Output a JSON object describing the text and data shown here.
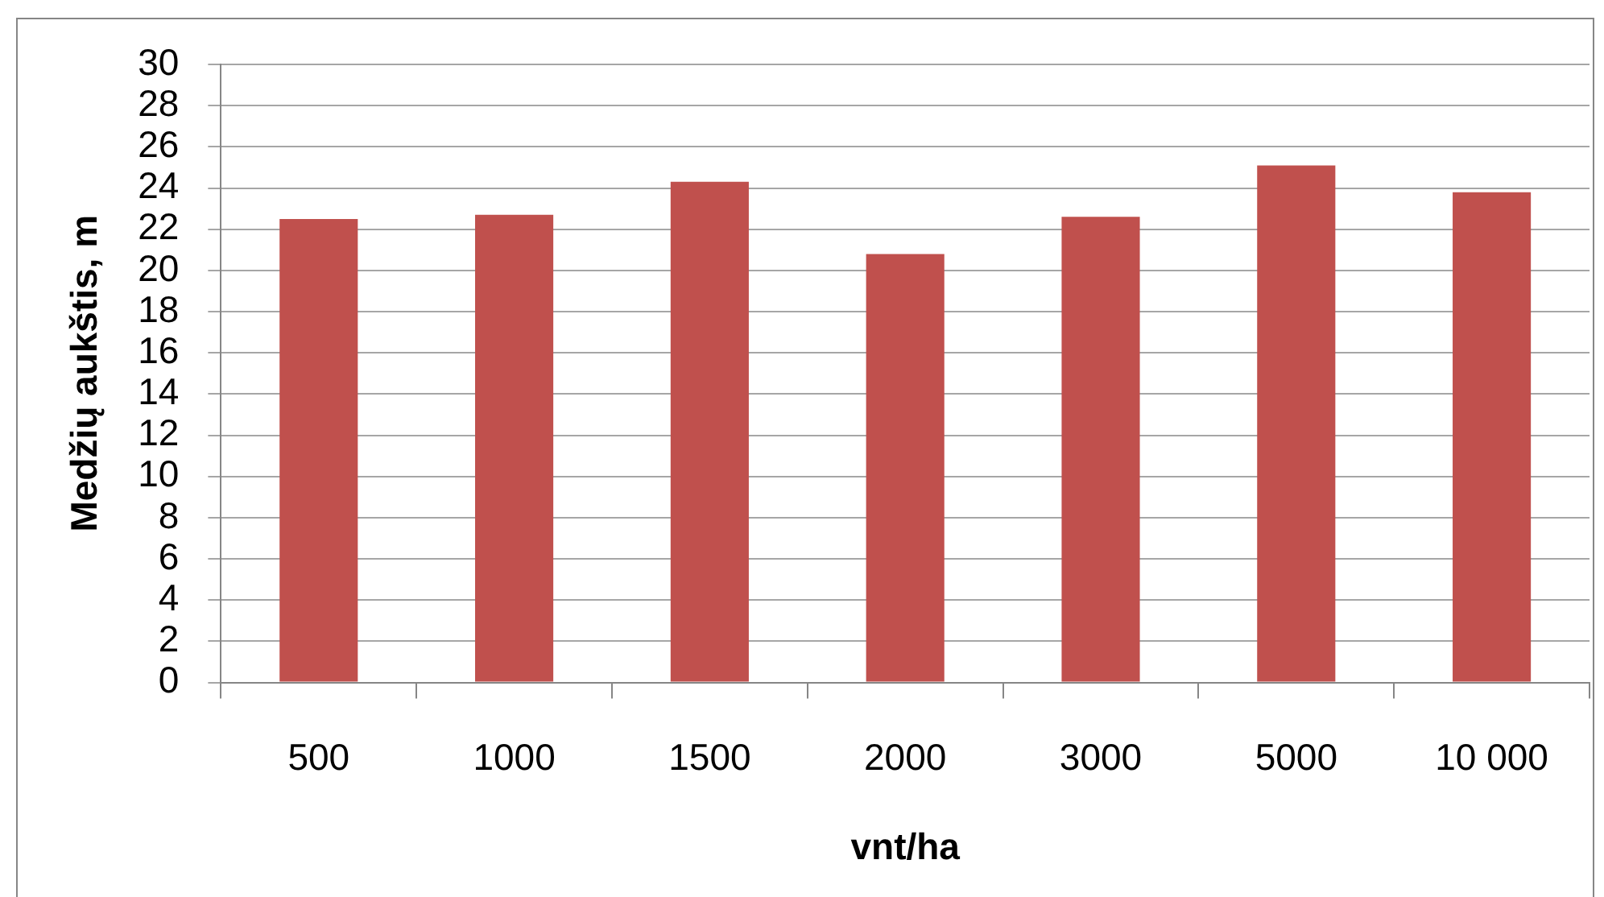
{
  "chart_data": {
    "type": "bar",
    "xlabel": "vnt/ha",
    "ylabel": "Medžių aukštis, m",
    "categories": [
      "500",
      "1000",
      "1500",
      "2000",
      "3000",
      "5000",
      "10 000"
    ],
    "values": [
      22.5,
      22.7,
      24.3,
      20.8,
      22.6,
      25.1,
      23.8
    ],
    "color": "#c0504d",
    "ylim": [
      0,
      30
    ],
    "yticks": [
      0,
      2,
      4,
      6,
      8,
      10,
      12,
      14,
      16,
      18,
      20,
      22,
      24,
      26,
      28,
      30
    ],
    "grid": "y"
  }
}
